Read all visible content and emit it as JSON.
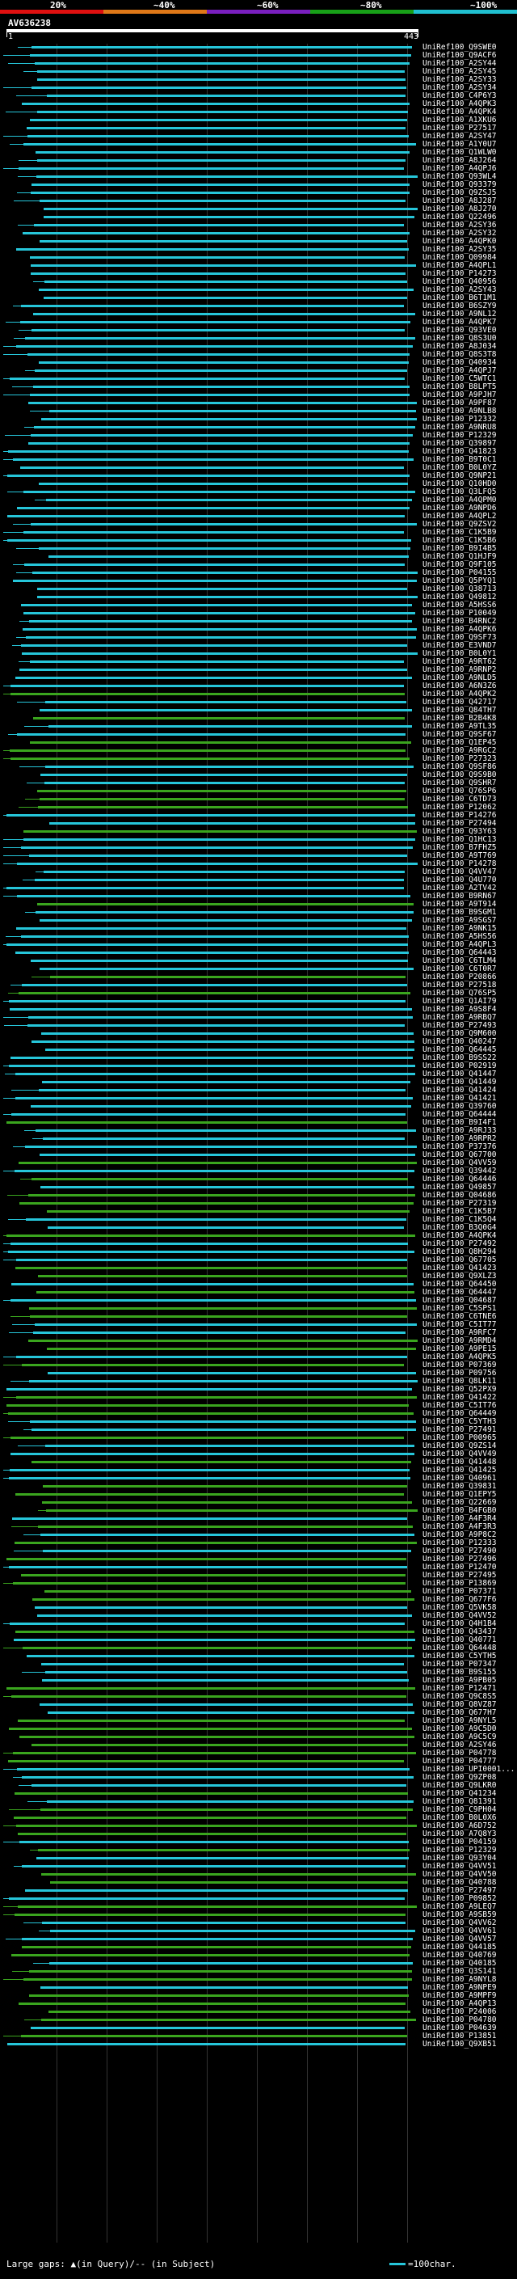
{
  "header": {
    "scale_labels": [
      "20%",
      "~40%",
      "~60%",
      "~80%",
      "~100%"
    ],
    "scale_colors": [
      "#e01010",
      "#e07818",
      "#7a1fbf",
      "#18a018",
      "#20c0d0"
    ],
    "accession": "AV636238",
    "query_start": "1",
    "query_end": "443"
  },
  "colors": {
    "cyan": "#26c6da",
    "green": "#3aa51e"
  },
  "legend": {
    "left": "Large gaps: ▲(in Query)/-- (in Subject)",
    "right": "=100char."
  },
  "hits": [
    "UniRef100_Q9SWE0",
    "UniRef100_Q9ACF6",
    "UniRef100_A2SY44",
    "UniRef100_A2SY45",
    "UniRef100_A2SY33",
    "UniRef100_A2SY34",
    "UniRef100_C4P6Y3",
    "UniRef100_A4QPK3",
    "UniRef100_A4QPK4",
    "UniRef100_A1XKU6",
    "UniRef100_P27517",
    "UniRef100_A2SY47",
    "UniRef100_A1Y0U7",
    "UniRef100_Q1WLW0",
    "UniRef100_A8J264",
    "UniRef100_A4QPJ6",
    "UniRef100_Q93WL4",
    "UniRef100_Q93379",
    "UniRef100_Q9ZSJ5",
    "UniRef100_A8J287",
    "UniRef100_A8J270",
    "UniRef100_Q22496",
    "UniRef100_A2SY36",
    "UniRef100_A2SY32",
    "UniRef100_A4QPK0",
    "UniRef100_A2SY35",
    "UniRef100_Q09984",
    "UniRef100_A4QPL1",
    "UniRef100_P14273",
    "UniRef100_Q40956",
    "UniRef100_A2SY43",
    "UniRef100_B6T1M1",
    "UniRef100_B6SZY9",
    "UniRef100_A9NL12",
    "UniRef100_A4QPK7",
    "UniRef100_Q93VE0",
    "UniRef100_Q8S3U0",
    "UniRef100_A8J034",
    "UniRef100_Q8S3T8",
    "UniRef100_Q40934",
    "UniRef100_A4QPJ7",
    "UniRef100_C5WTC1",
    "UniRef100_B8LPT5",
    "UniRef100_A9PJH7",
    "UniRef100_A9PF87",
    "UniRef100_A9NLB8",
    "UniRef100_P12332",
    "UniRef100_A9NRU8",
    "UniRef100_P12329",
    "UniRef100_Q39897",
    "UniRef100_Q41823",
    "UniRef100_B9T0C1",
    "UniRef100_B0L0YZ",
    "UniRef100_Q9NP21",
    "UniRef100_Q10HD0",
    "UniRef100_Q3LFQ5",
    "UniRef100_A4QPM0",
    "UniRef100_A9NPD6",
    "UniRef100_A4QPL2",
    "UniRef100_Q9ZSV2",
    "UniRef100_C1K5B9",
    "UniRef100_C1K5B6",
    "UniRef100_B9I4B5",
    "UniRef100_Q1HJF9",
    "UniRef100_Q9F105",
    "UniRef100_P04155",
    "UniRef100_Q5PYQ1",
    "UniRef100_Q38713",
    "UniRef100_Q49812",
    "UniRef100_A5HSS6",
    "UniRef100_P10049",
    "UniRef100_B4RNC2",
    "UniRef100_A4QPK6",
    "UniRef100_Q9SF73",
    "UniRef100_E3VND7",
    "UniRef100_B0L0Y1",
    "UniRef100_A9RT62",
    "UniRef100_A9RNP2",
    "UniRef100_A9NLD5",
    "UniRef100_A6N3Z6",
    "UniRef100_A4QPK2",
    "UniRef100_Q42717",
    "UniRef100_Q84TH7",
    "UniRef100_B2B4K8",
    "UniRef100_A9TL35",
    "UniRef100_Q9SF67",
    "UniRef100_Q1EP45",
    "UniRef100_A9RGC2",
    "UniRef100_P27323",
    "UniRef100_Q9SF86",
    "UniRef100_Q9S9B0",
    "UniRef100_Q9SHR7",
    "UniRef100_Q76SP6",
    "UniRef100_C6TD73",
    "UniRef100_P12062",
    "UniRef100_P14276",
    "UniRef100_P27494",
    "UniRef100_Q93Y63",
    "UniRef100_Q1HC13",
    "UniRef100_B7FHZ5",
    "UniRef100_A9T769",
    "UniRef100_P14278",
    "UniRef100_Q4VV47",
    "UniRef100_Q4U770",
    "UniRef100_A2TV42",
    "UniRef100_B9RN67",
    "UniRef100_A9T914",
    "UniRef100_B9SGM1",
    "UniRef100_A9SGS7",
    "UniRef100_A9NK15",
    "UniRef100_A5HS56",
    "UniRef100_A4QPL3",
    "UniRef100_Q64443",
    "UniRef100_C6TLM4",
    "UniRef100_C6T0R7",
    "UniRef100_P20866",
    "UniRef100_P27518",
    "UniRef100_Q76SP5",
    "UniRef100_Q1AI79",
    "UniRef100_A9S8F4",
    "UniRef100_A9RBQ7",
    "UniRef100_P27493",
    "UniRef100_Q9M600",
    "UniRef100_Q40247",
    "UniRef100_Q64445",
    "UniRef100_B9SS22",
    "UniRef100_P02919",
    "UniRef100_Q41447",
    "UniRef100_Q41449",
    "UniRef100_Q41424",
    "UniRef100_Q41421",
    "UniRef100_Q39760",
    "UniRef100_Q64444",
    "UniRef100_B9I4F1",
    "UniRef100_A9RJ33",
    "UniRef100_A9RPR2",
    "UniRef100_P37376",
    "UniRef100_Q67700",
    "UniRef100_Q4VV59",
    "UniRef100_Q39442",
    "UniRef100_Q64446",
    "UniRef100_Q49857",
    "UniRef100_Q04686",
    "UniRef100_P27319",
    "UniRef100_C1K5B7",
    "UniRef100_C1K5Q4",
    "UniRef100_B3Q0G4",
    "UniRef100_A4QPK4",
    "UniRef100_P27492",
    "UniRef100_Q8H294",
    "UniRef100_Q67705",
    "UniRef100_Q41423",
    "UniRef100_Q9XLZ3",
    "UniRef100_Q64450",
    "UniRef100_Q64447",
    "UniRef100_Q04687",
    "UniRef100_C5SPS1",
    "UniRef100_C6TNE6",
    "UniRef100_C5IT77",
    "UniRef100_A9RFC7",
    "UniRef100_A9RMD4",
    "UniRef100_A9PE15",
    "UniRef100_A4QPK5",
    "UniRef100_P07369",
    "UniRef100_P09756",
    "UniRef100_Q8LK11",
    "UniRef100_Q52PX9",
    "UniRef100_Q41422",
    "UniRef100_C5IT76",
    "UniRef100_Q64449",
    "UniRef100_C5YTH3",
    "UniRef100_P27491",
    "UniRef100_P00965",
    "UniRef100_Q9ZS14",
    "UniRef100_Q4VV49",
    "UniRef100_Q41448",
    "UniRef100_Q41425",
    "UniRef100_Q40961",
    "UniRef100_Q39831",
    "UniRef100_Q1EPY5",
    "UniRef100_Q22669",
    "UniRef100_B4FGB0",
    "UniRef100_A4F3R4",
    "UniRef100_A4F3R3",
    "UniRef100_A9P8C2",
    "UniRef100_P12333",
    "UniRef100_P27490",
    "UniRef100_P27496",
    "UniRef100_P12470",
    "UniRef100_P27495",
    "UniRef100_P13869",
    "UniRef100_P07371",
    "UniRef100_Q677F6",
    "UniRef100_Q5VK58",
    "UniRef100_Q4VV52",
    "UniRef100_Q4H1B4",
    "UniRef100_Q43437",
    "UniRef100_Q40771",
    "UniRef100_Q64448",
    "UniRef100_C5YTH5",
    "UniRef100_P07347",
    "UniRef100_B9S155",
    "UniRef100_A9PB05",
    "UniRef100_P12471",
    "UniRef100_Q9C8S5",
    "UniRef100_Q8VZ87",
    "UniRef100_Q677H7",
    "UniRef100_A9NYL5",
    "UniRef100_A9C5D0",
    "UniRef100_A9C5C9",
    "UniRef100_A2SY46",
    "UniRef100_P04778",
    "UniRef100_P04777",
    "UniRef100_UPI0001...",
    "UniRef100_Q9ZP08",
    "UniRef100_Q9LKR0",
    "UniRef100_Q41234",
    "UniRef100_Q81391",
    "UniRef100_C9PH04",
    "UniRef100_B0L0X6",
    "UniRef100_A6D752",
    "UniRef100_A7Q8Y3",
    "UniRef100_P04159",
    "UniRef100_P12329",
    "UniRef100_Q93Y04",
    "UniRef100_Q4VV51",
    "UniRef100_Q4VV50",
    "UniRef100_Q40788",
    "UniRef100_P27497",
    "UniRef100_P09852",
    "UniRef100_A9LEQ7",
    "UniRef100_A9SB59",
    "UniRef100_Q4VV62",
    "UniRef100_Q4VV61",
    "UniRef100_Q4VV57",
    "UniRef100_Q44185",
    "UniRef100_Q40769",
    "UniRef100_Q40185",
    "UniRef100_Q3S141",
    "UniRef100_A9NYL8",
    "UniRef100_A9NPE9",
    "UniRef100_A9MPF9",
    "UniRef100_A4QP13",
    "UniRef100_P24006",
    "UniRef100_P04780",
    "UniRef100_P04639",
    "UniRef100_P13851",
    "UniRef100_Q9XB51"
  ]
}
